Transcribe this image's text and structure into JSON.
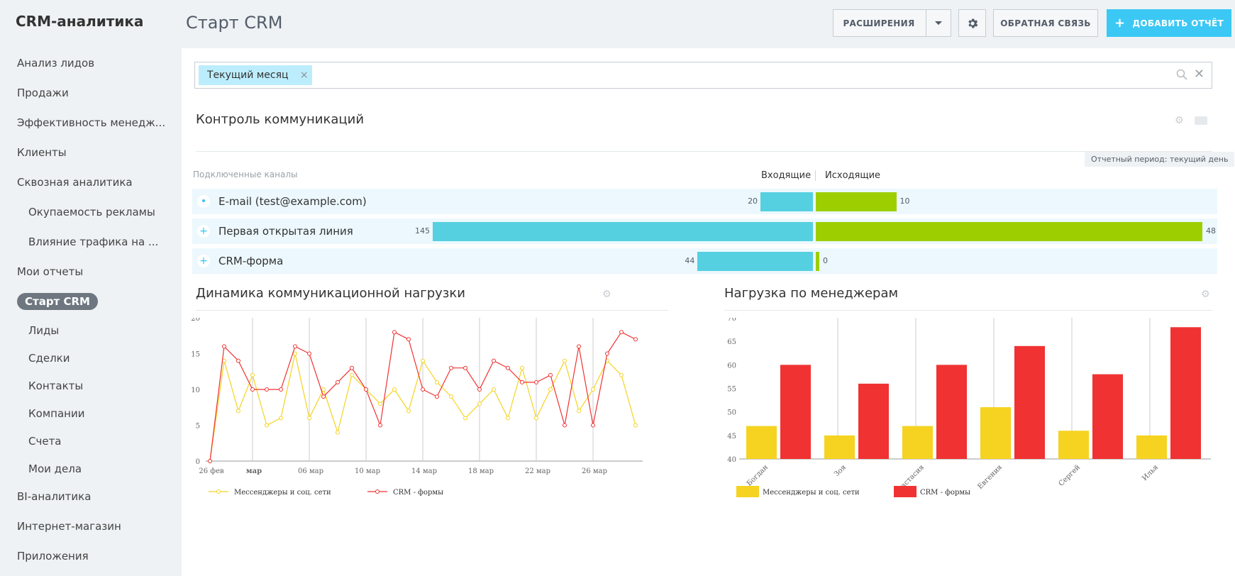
{
  "app_title": "CRM-аналитика",
  "page_title": "Старт CRM",
  "sidebar": {
    "items": [
      {
        "label": "Анализ лидов",
        "level": 0
      },
      {
        "label": "Продажи",
        "level": 0
      },
      {
        "label": "Эффективность менедж...",
        "level": 0
      },
      {
        "label": "Клиенты",
        "level": 0
      },
      {
        "label": "Сквозная аналитика",
        "level": 0
      },
      {
        "label": "Окупаемость рекламы",
        "level": 1
      },
      {
        "label": "Влияние трафика на ...",
        "level": 1
      },
      {
        "label": "Мои отчеты",
        "level": 0
      },
      {
        "label": "Старт CRM",
        "level": 0,
        "active": true
      },
      {
        "label": "Лиды",
        "level": 1
      },
      {
        "label": "Сделки",
        "level": 1
      },
      {
        "label": "Контакты",
        "level": 1
      },
      {
        "label": "Компании",
        "level": 1
      },
      {
        "label": "Счета",
        "level": 1
      },
      {
        "label": "Мои дела",
        "level": 1
      },
      {
        "label": "BI-аналитика",
        "level": 0
      },
      {
        "label": "Интернет-магазин",
        "level": 0
      },
      {
        "label": "Приложения",
        "level": 0
      }
    ]
  },
  "toolbar": {
    "extensions_label": "РАСШИРЕНИЯ",
    "feedback_label": "ОБРАТНАЯ СВЯЗЬ",
    "add_report_label": "ДОБАВИТЬ ОТЧЁТ"
  },
  "filter": {
    "tag_label": "Текущий месяц"
  },
  "communications": {
    "title": "Контроль коммуникаций",
    "period_label": "Отчетный период: текущий день",
    "channels_header": "Подключенные каналы",
    "incoming_label": "Входящие",
    "outgoing_label": "Исходящие",
    "channels": [
      {
        "name": "E-mail (test@example.com)",
        "incoming": 20,
        "outgoing": 10
      },
      {
        "name": "Первая открытая линия",
        "incoming": 145,
        "outgoing": 48
      },
      {
        "name": "CRM-форма",
        "incoming": 44,
        "outgoing": 0
      }
    ]
  },
  "colors": {
    "incoming_bar": "#55d0e0",
    "outgoing_bar": "#9dcf00",
    "messengers": "#f5d320",
    "crm_forms": "#f03232",
    "accent": "#3bc8f5"
  },
  "chart_data": [
    {
      "type": "line",
      "title": "Динамика коммуникационной нагрузки",
      "x_ticks": [
        "26 фев",
        "мар",
        "06 мар",
        "10 мар",
        "14 мар",
        "18 мар",
        "22 мар",
        "26 мар"
      ],
      "ylim": [
        0,
        20
      ],
      "y_ticks": [
        0,
        5,
        10,
        15,
        20
      ],
      "grid": "vertical",
      "legend_position": "bottom",
      "series": [
        {
          "name": "Мессенджеры и соц. сети",
          "values": [
            0,
            14,
            7,
            12,
            5,
            6,
            15,
            6,
            10,
            4,
            12,
            10,
            8,
            10,
            7,
            14,
            11,
            9,
            6,
            8,
            10,
            6,
            13,
            6,
            10,
            14,
            7,
            10,
            14,
            12,
            5
          ]
        },
        {
          "name": "CRM - формы",
          "values": [
            0,
            16,
            14,
            10,
            10,
            10,
            16,
            15,
            9,
            11,
            13,
            10,
            5,
            18,
            17,
            10,
            9,
            13,
            13,
            10,
            14,
            13,
            11,
            11,
            12,
            5,
            16,
            5,
            15,
            18,
            17
          ]
        }
      ]
    },
    {
      "type": "bar",
      "title": "Нагрузка по менеджерам",
      "categories": [
        "Богдан",
        "Зоя",
        "Анастасия",
        "Евгения",
        "Сергей",
        "Илья"
      ],
      "ylim": [
        40,
        70
      ],
      "y_ticks": [
        40,
        45,
        50,
        55,
        60,
        65,
        70
      ],
      "legend_position": "bottom",
      "series": [
        {
          "name": "Мессенджеры и соц. сети",
          "values": [
            47,
            45,
            47,
            51,
            46,
            45
          ]
        },
        {
          "name": "CRM - формы",
          "values": [
            60,
            56,
            60,
            64,
            58,
            68
          ]
        }
      ]
    }
  ]
}
